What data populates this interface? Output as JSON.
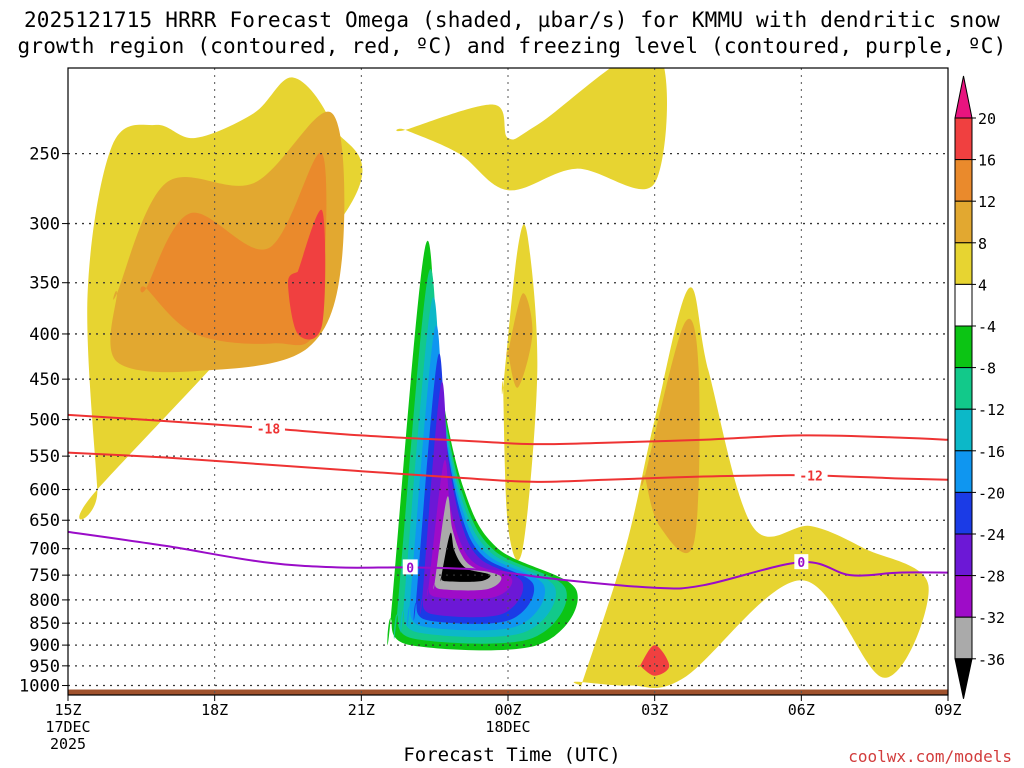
{
  "title_line1": "2025121715 HRRR Forecast Omega (shaded, µbar/s) for KMMU with dendritic snow",
  "title_line2": "growth region (contoured, red, ºC) and freezing level (contoured, purple, ºC)",
  "credit": "coolwx.com/models",
  "chart_data": {
    "type": "heatmap",
    "title": "2025121715 HRRR Forecast Omega (shaded, µbar/s) for KMMU with dendritic snow growth region (contoured, red, ºC) and freezing level (contoured, purple, ºC)",
    "xlabel": "Forecast Time (UTC)",
    "ylabel": "",
    "x_hours_range": [
      0,
      18
    ],
    "x_ticks": [
      {
        "hour": 0,
        "lines": [
          "15Z",
          "17DEC",
          "2025"
        ]
      },
      {
        "hour": 3,
        "lines": [
          "18Z"
        ]
      },
      {
        "hour": 6,
        "lines": [
          "21Z"
        ]
      },
      {
        "hour": 9,
        "lines": [
          "00Z",
          "18DEC"
        ]
      },
      {
        "hour": 12,
        "lines": [
          "03Z"
        ]
      },
      {
        "hour": 15,
        "lines": [
          "06Z"
        ]
      },
      {
        "hour": 18,
        "lines": [
          "09Z"
        ]
      }
    ],
    "y_pressure_range": [
      1025,
      200
    ],
    "y_ticks": [
      250,
      300,
      350,
      400,
      450,
      500,
      550,
      600,
      650,
      700,
      750,
      800,
      850,
      900,
      950,
      1000
    ],
    "colorbar": {
      "labels": [
        "20",
        "16",
        "12",
        "8",
        "4",
        "-4",
        "-8",
        "-12",
        "-16",
        "-20",
        "-24",
        "-28",
        "-32",
        "-36"
      ],
      "bins": [
        {
          "from": 20,
          "to": 24,
          "color": "#e8147f"
        },
        {
          "from": 16,
          "to": 20,
          "color": "#f04040"
        },
        {
          "from": 12,
          "to": 16,
          "color": "#ea8a2c"
        },
        {
          "from": 8,
          "to": 12,
          "color": "#e2a830"
        },
        {
          "from": 4,
          "to": 8,
          "color": "#e7d431"
        },
        {
          "from": -4,
          "to": 4,
          "color": "#ffffff"
        },
        {
          "from": -8,
          "to": -4,
          "color": "#0cc414"
        },
        {
          "from": -12,
          "to": -8,
          "color": "#12c98a"
        },
        {
          "from": -16,
          "to": -12,
          "color": "#0cb8c8"
        },
        {
          "from": -20,
          "to": -16,
          "color": "#0f96f0"
        },
        {
          "from": -24,
          "to": -20,
          "color": "#1b3be6"
        },
        {
          "from": -28,
          "to": -24,
          "color": "#6c18d6"
        },
        {
          "from": -32,
          "to": -28,
          "color": "#9e0cc8"
        },
        {
          "from": -36,
          "to": -32,
          "color": "#aaaaaa"
        },
        {
          "from": -40,
          "to": -36,
          "color": "#000000"
        }
      ]
    },
    "omega_features": [
      {
        "name": "upper-left-rising-motion",
        "value": 4,
        "hours": [
          0.6,
          5.7,
          5.4,
          4.6,
          3.8,
          2.6,
          1.8,
          0.9,
          0.4,
          0.6
        ],
        "pressures": [
          600,
          290,
          232,
          205,
          225,
          240,
          232,
          245,
          360,
          600
        ]
      },
      {
        "name": "upper-left-rising-motion",
        "value": 8,
        "hours": [
          1.0,
          2.0,
          3.8,
          5.4,
          5.6,
          4.9,
          2.8,
          1.0,
          1.0
        ],
        "pressures": [
          360,
          270,
          270,
          225,
          330,
          415,
          440,
          430,
          360
        ]
      },
      {
        "name": "upper-left-rising-motion",
        "value": 12,
        "hours": [
          1.6,
          2.5,
          4.1,
          5.2,
          5.1,
          4.2,
          2.6,
          1.6
        ],
        "pressures": [
          355,
          292,
          320,
          250,
          390,
          410,
          400,
          355
        ]
      },
      {
        "name": "upper-left-rising-motion",
        "value": 16,
        "hours": [
          4.7,
          5.2,
          5.2,
          4.7,
          4.5,
          4.7
        ],
        "pressures": [
          340,
          290,
          390,
          400,
          350,
          340
        ]
      },
      {
        "name": "upper-left-rising-motion",
        "value": 4,
        "hours": [
          6.9,
          8.7,
          9.0,
          9.6,
          12.0,
          12.0,
          10.4,
          9.0,
          8.0,
          6.9
        ],
        "pressures": [
          235,
          220,
          240,
          232,
          190,
          270,
          260,
          275,
          250,
          235
        ]
      },
      {
        "name": "center-rising-motion",
        "value": 4,
        "hours": [
          8.9,
          9.2,
          9.4,
          9.6,
          9.3,
          9.0,
          8.9
        ],
        "pressures": [
          460,
          320,
          310,
          440,
          700,
          660,
          460
        ]
      },
      {
        "name": "center-rising-motion",
        "value": 8,
        "hours": [
          9.0,
          9.3,
          9.5,
          9.2,
          9.0
        ],
        "pressures": [
          420,
          360,
          400,
          460,
          420
        ]
      },
      {
        "name": "lower-right-rising-motion",
        "value": 4,
        "hours": [
          10.5,
          11.4,
          12.0,
          12.7,
          13.1,
          14.0,
          15.2,
          16.3,
          17.6,
          16.7,
          15.0,
          12.6,
          11.5,
          10.4,
          10.5
        ],
        "pressures": [
          1000,
          700,
          500,
          355,
          440,
          660,
          660,
          700,
          770,
          980,
          760,
          980,
          1000,
          990,
          1000
        ]
      },
      {
        "name": "lower-right-rising-motion",
        "value": 8,
        "hours": [
          11.8,
          12.6,
          12.9,
          12.8,
          12.1,
          11.8
        ],
        "pressures": [
          580,
          390,
          440,
          690,
          660,
          580
        ]
      },
      {
        "name": "lower-right-rising-motion",
        "value": 16,
        "hours": [
          11.7,
          12.0,
          12.3,
          12.0,
          11.7
        ],
        "pressures": [
          950,
          900,
          950,
          975,
          950
        ]
      }
    ],
    "omega_core": {
      "name": "center-sinking-motion",
      "min_value": -36,
      "hours": [
        6.6,
        7.3,
        7.6,
        8.1,
        8.8,
        10.4,
        9.6,
        7.0,
        6.6
      ],
      "pressures": [
        840,
        320,
        450,
        600,
        700,
        780,
        900,
        900,
        840
      ]
    },
    "contours": {
      "dendritic": [
        {
          "label": "-18",
          "color": "#ee3333",
          "hours": [
            0,
            2,
            4,
            6,
            8,
            9.5,
            11,
            13,
            15,
            17,
            18
          ],
          "pressures": [
            494,
            502,
            511,
            521,
            528,
            533,
            531,
            527,
            521,
            524,
            527
          ]
        },
        {
          "label": "-12",
          "color": "#ee3333",
          "hours": [
            0,
            2,
            4,
            6,
            8,
            9.5,
            11,
            13,
            15,
            17,
            18
          ],
          "pressures": [
            545,
            552,
            562,
            572,
            582,
            588,
            585,
            580,
            578,
            583,
            585
          ]
        }
      ],
      "freezing": [
        {
          "label": "0",
          "color": "#9a0cc8",
          "hours": [
            0,
            2,
            4,
            5.5,
            7,
            8.5,
            10,
            12,
            13,
            15,
            16,
            17,
            18
          ],
          "pressures": [
            670,
            695,
            725,
            735,
            735,
            740,
            758,
            775,
            770,
            725,
            750,
            745,
            745
          ]
        }
      ]
    }
  }
}
